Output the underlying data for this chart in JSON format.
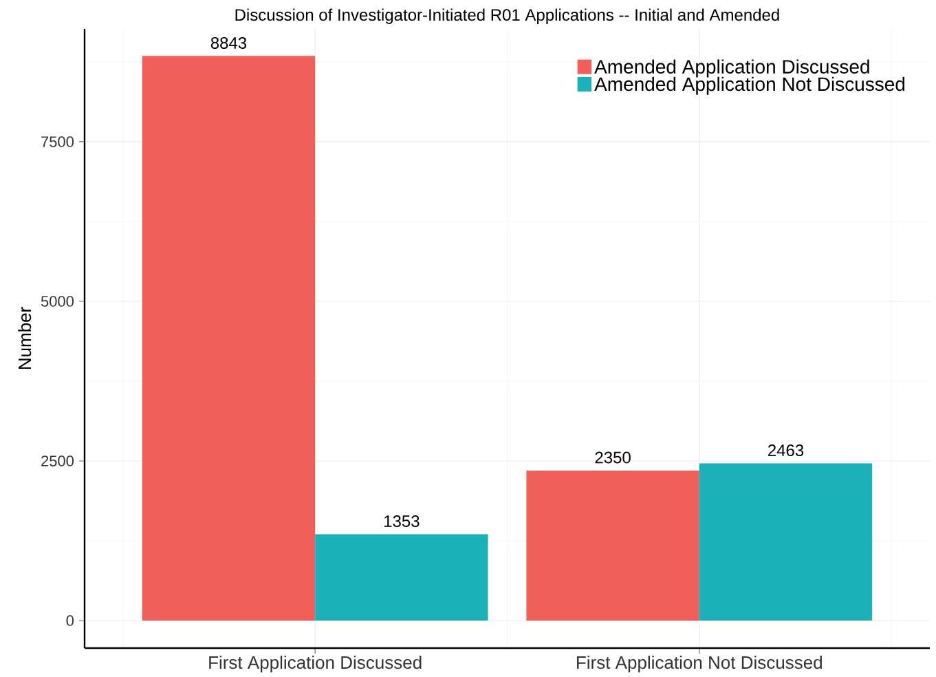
{
  "chart_data": {
    "type": "bar",
    "title": "Discussion of Investigator-Initiated R01 Applications -- Initial and Amended",
    "ylabel": "Number",
    "categories": [
      "First Application Discussed",
      "First Application Not Discussed"
    ],
    "series": [
      {
        "name": "Amended Application Discussed",
        "color": "#f15f5a",
        "values": [
          8843,
          2350
        ]
      },
      {
        "name": "Amended Application Not Discussed",
        "color": "#1ab2b8",
        "values": [
          1353,
          2463
        ]
      }
    ],
    "ylim": [
      -431,
      9267
    ],
    "yticks": [
      0,
      2500,
      5000,
      7500
    ],
    "grid": true,
    "legend": "top right",
    "data_labels": true
  }
}
